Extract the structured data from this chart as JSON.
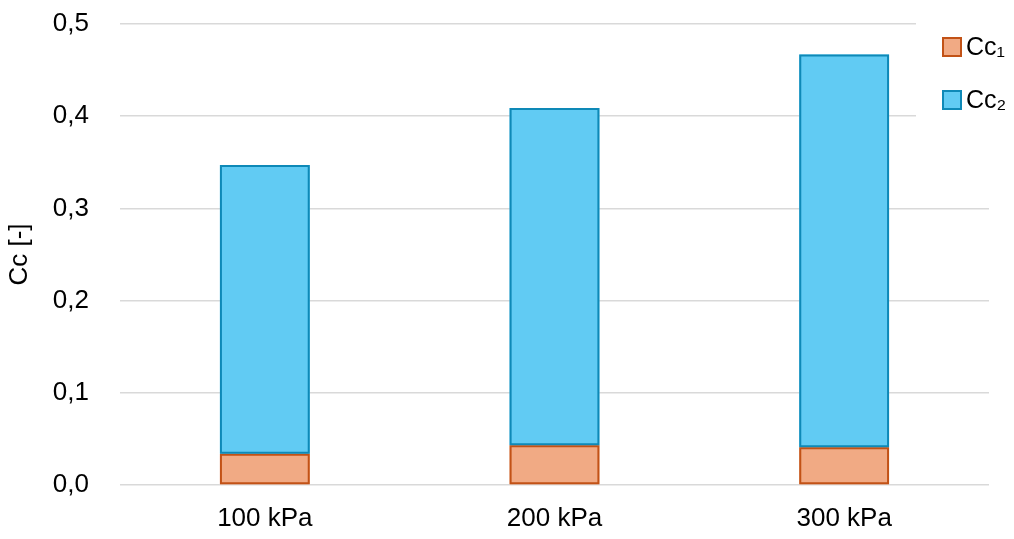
{
  "chart_data": {
    "type": "bar",
    "ylabel": "Cc [-]",
    "categories": [
      "100 kPa",
      "200 kPa",
      "300 kPa"
    ],
    "series": [
      {
        "name": "Cc₁",
        "color": "#f1aa84",
        "values": [
          0.034,
          0.043,
          0.041
        ]
      },
      {
        "name": "Cc₂",
        "color": "#61cbf3",
        "values": [
          0.313,
          0.366,
          0.426
        ]
      }
    ],
    "stacked": true,
    "ylim": [
      0,
      0.5
    ],
    "yticks": [
      {
        "value": 0,
        "label": "0,0"
      },
      {
        "value": 0.1,
        "label": "0,1"
      },
      {
        "value": 0.2,
        "label": "0,2"
      },
      {
        "value": 0.3,
        "label": "0,3"
      },
      {
        "value": 0.4,
        "label": "0,4"
      },
      {
        "value": 0.5,
        "label": "0,5"
      }
    ],
    "grid": "y",
    "legend": "top right"
  }
}
